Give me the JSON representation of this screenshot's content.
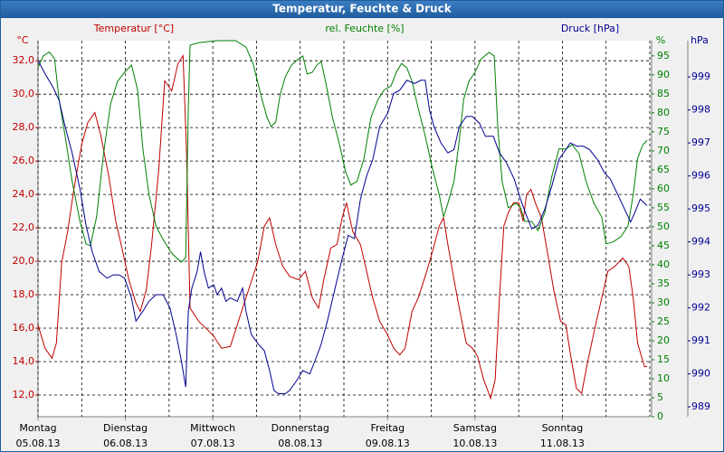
{
  "chart_data": {
    "type": "line",
    "title": "Temperatur, Feuchte & Druck",
    "xlim": [
      0,
      7
    ],
    "xticks": [
      {
        "value": 0,
        "label": "Montag",
        "date": "05.08.13"
      },
      {
        "value": 1,
        "label": "Dienstag",
        "date": "06.08.13"
      },
      {
        "value": 2,
        "label": "Mittwoch",
        "date": "07.08.13"
      },
      {
        "value": 3,
        "label": "Donnerstag",
        "date": "08.08.13"
      },
      {
        "value": 4,
        "label": "Freitag",
        "date": "09.08.13"
      },
      {
        "value": 5,
        "label": "Samstag",
        "date": "10.08.13"
      },
      {
        "value": 6,
        "label": "Sonntag",
        "date": "11.08.13"
      }
    ],
    "xminorticks": [
      0.5,
      1.5,
      2.5,
      3.5,
      4.5,
      5.5,
      6.5,
      7
    ],
    "ylabel": "°C",
    "ytitle": "Temperatur [°C]",
    "ylim": [
      10.7,
      33.2
    ],
    "yticks": [
      {
        "value": 12,
        "label": "12,0"
      },
      {
        "value": 14,
        "label": "14,0"
      },
      {
        "value": 16,
        "label": "16,0"
      },
      {
        "value": 18,
        "label": "18,0"
      },
      {
        "value": 20,
        "label": "20,0"
      },
      {
        "value": 22,
        "label": "22,0"
      },
      {
        "value": 24,
        "label": "24,0"
      },
      {
        "value": 26,
        "label": "26,0"
      },
      {
        "value": 28,
        "label": "28,0"
      },
      {
        "value": 30,
        "label": "30,0"
      },
      {
        "value": 32,
        "label": "32,0"
      }
    ],
    "y2label": "%",
    "y2title": "rel. Feuchte [%]",
    "y2lim": [
      0,
      99
    ],
    "y2ticks": [
      0,
      5,
      10,
      15,
      20,
      25,
      30,
      35,
      40,
      45,
      50,
      55,
      60,
      65,
      70,
      75,
      80,
      85,
      90,
      95
    ],
    "y3label": "hPa",
    "y3title": "Druck [hPa]",
    "y3lim": [
      988.7,
      1000.1
    ],
    "y3ticks": [
      989,
      990,
      991,
      992,
      993,
      994,
      995,
      996,
      997,
      998,
      999
    ],
    "grid": true,
    "series": [
      {
        "name": "Temperatur",
        "color": "#c00000",
        "axis": "y",
        "x": [
          0,
          0.08,
          0.16,
          0.21,
          0.27,
          0.34,
          0.41,
          0.5,
          0.57,
          0.65,
          0.72,
          0.81,
          0.89,
          0.96,
          1.04,
          1.12,
          1.17,
          1.24,
          1.3,
          1.38,
          1.45,
          1.53,
          1.6,
          1.66,
          1.7,
          1.74,
          1.84,
          2.0,
          2.1,
          2.2,
          2.31,
          2.41,
          2.51,
          2.59,
          2.65,
          2.72,
          2.8,
          2.88,
          2.98,
          3.06,
          3.14,
          3.21,
          3.27,
          3.35,
          3.42,
          3.48,
          3.53,
          3.6,
          3.69,
          3.76,
          3.83,
          3.91,
          4.0,
          4.07,
          4.14,
          4.2,
          4.28,
          4.35,
          4.43,
          4.51,
          4.59,
          4.64,
          4.69,
          4.76,
          4.82,
          4.9,
          4.97,
          5.03,
          5.1,
          5.18,
          5.23,
          5.28,
          5.33,
          5.38,
          5.44,
          5.5,
          5.55,
          5.59,
          5.64,
          5.69,
          5.76,
          5.83,
          5.9,
          5.98,
          6.04,
          6.09,
          6.16,
          6.22,
          6.29,
          6.38,
          6.45,
          6.52,
          6.6,
          6.69,
          6.76,
          6.81,
          6.86,
          6.94,
          6.97
        ],
        "values": [
          16.2,
          14.8,
          14.2,
          15.1,
          19.9,
          21.8,
          24.3,
          27.0,
          28.3,
          28.9,
          27.5,
          25.1,
          22.4,
          20.8,
          18.9,
          17.5,
          17.0,
          18.3,
          21.0,
          25.4,
          30.8,
          30.2,
          31.8,
          32.3,
          26.4,
          17.2,
          16.4,
          15.6,
          14.8,
          14.9,
          16.7,
          18.3,
          19.9,
          22.1,
          22.6,
          21.0,
          19.7,
          19.1,
          18.9,
          19.4,
          17.8,
          17.2,
          18.9,
          20.8,
          21.0,
          22.6,
          23.5,
          21.8,
          21.0,
          19.4,
          17.8,
          16.4,
          15.6,
          14.8,
          14.4,
          14.8,
          17.0,
          17.8,
          19.1,
          20.5,
          22.1,
          22.6,
          21.0,
          18.9,
          17.2,
          15.1,
          14.8,
          14.3,
          12.9,
          11.8,
          12.9,
          17.8,
          22.1,
          22.9,
          23.5,
          23.5,
          22.4,
          24.0,
          24.3,
          23.5,
          22.6,
          20.5,
          18.3,
          16.4,
          16.2,
          14.5,
          12.4,
          12.1,
          14.0,
          16.2,
          17.8,
          19.4,
          19.7,
          20.2,
          19.7,
          17.8,
          15.1,
          13.7,
          13.7
        ]
      },
      {
        "name": "rel. Feuchte",
        "color": "#008000",
        "axis": "y2",
        "x": [
          0,
          0.06,
          0.13,
          0.19,
          0.24,
          0.31,
          0.39,
          0.48,
          0.55,
          0.6,
          0.67,
          0.75,
          0.83,
          0.91,
          0.99,
          1.07,
          1.14,
          1.2,
          1.27,
          1.35,
          1.43,
          1.53,
          1.64,
          1.69,
          1.72,
          1.74,
          1.84,
          2.05,
          2.26,
          2.31,
          2.38,
          2.46,
          2.55,
          2.62,
          2.67,
          2.72,
          2.77,
          2.83,
          2.9,
          2.98,
          3.03,
          3.08,
          3.14,
          3.19,
          3.24,
          3.29,
          3.37,
          3.45,
          3.52,
          3.58,
          3.65,
          3.73,
          3.81,
          3.89,
          3.96,
          4.04,
          4.1,
          4.16,
          4.22,
          4.28,
          4.35,
          4.43,
          4.51,
          4.59,
          4.64,
          4.69,
          4.76,
          4.82,
          4.87,
          4.93,
          5.0,
          5.07,
          5.16,
          5.22,
          5.26,
          5.31,
          5.38,
          5.47,
          5.52,
          5.57,
          5.65,
          5.72,
          5.8,
          5.88,
          5.96,
          6.04,
          6.11,
          6.19,
          6.27,
          6.36,
          6.45,
          6.5,
          6.58,
          6.67,
          6.75,
          6.81,
          6.86,
          6.92,
          6.97
        ],
        "values": [
          91.9,
          95,
          96,
          94.2,
          83.6,
          74,
          62,
          51.4,
          45.5,
          45,
          52.6,
          69.3,
          82.4,
          88.3,
          90.7,
          92.6,
          86,
          70.5,
          58.5,
          50.2,
          46.7,
          43,
          40.7,
          41.9,
          81.2,
          97.8,
          98.5,
          99,
          99,
          98.3,
          97.3,
          93,
          84.7,
          78.8,
          76.4,
          77.6,
          84.7,
          89.5,
          92.6,
          94.2,
          95,
          90.2,
          90.7,
          92.6,
          93.5,
          88.3,
          78.8,
          71.6,
          64.5,
          61,
          62,
          68,
          78.8,
          83.5,
          86,
          87.1,
          90.7,
          93,
          91.9,
          88.3,
          81.2,
          74,
          65.7,
          58.5,
          52.6,
          56.2,
          62,
          72.8,
          83.5,
          88.3,
          90.7,
          94.2,
          95.9,
          95,
          76.4,
          62,
          55,
          56.2,
          55,
          51.4,
          51.4,
          49,
          53.8,
          63.3,
          70.5,
          70.5,
          71.6,
          69.3,
          62,
          56.2,
          52.6,
          45.5,
          46,
          47.4,
          50.2,
          58.5,
          68,
          71.6,
          72.8
        ]
      },
      {
        "name": "Druck",
        "color": "#000090",
        "axis": "y3",
        "x": [
          0,
          0.08,
          0.17,
          0.24,
          0.31,
          0.39,
          0.48,
          0.55,
          0.62,
          0.7,
          0.79,
          0.86,
          0.93,
          0.99,
          1.07,
          1.12,
          1.2,
          1.27,
          1.35,
          1.43,
          1.51,
          1.58,
          1.64,
          1.69,
          1.72,
          1.76,
          1.82,
          1.86,
          1.9,
          1.95,
          2.01,
          2.05,
          2.1,
          2.15,
          2.2,
          2.28,
          2.34,
          2.38,
          2.44,
          2.52,
          2.59,
          2.65,
          2.7,
          2.75,
          2.83,
          2.88,
          2.96,
          3.03,
          3.11,
          3.17,
          3.24,
          3.31,
          3.4,
          3.48,
          3.55,
          3.62,
          3.69,
          3.76,
          3.83,
          3.91,
          4.0,
          4.07,
          4.14,
          4.22,
          4.31,
          4.38,
          4.43,
          4.48,
          4.53,
          4.61,
          4.69,
          4.76,
          4.82,
          4.9,
          4.97,
          5.05,
          5.12,
          5.21,
          5.28,
          5.36,
          5.45,
          5.52,
          5.59,
          5.65,
          5.72,
          5.8,
          5.88,
          5.96,
          6.04,
          6.09,
          6.17,
          6.24,
          6.31,
          6.4,
          6.48,
          6.55,
          6.64,
          6.71,
          6.78,
          6.83,
          6.89,
          6.97
        ],
        "values": [
          999.5,
          999.1,
          998.7,
          998.3,
          997.5,
          996.7,
          995.6,
          994.5,
          993.7,
          993.1,
          992.9,
          993.0,
          993.0,
          992.9,
          992.3,
          991.6,
          991.9,
          992.2,
          992.4,
          992.4,
          992.0,
          991.2,
          990.4,
          989.6,
          991.9,
          992.6,
          993.1,
          993.7,
          993.1,
          992.6,
          992.7,
          992.4,
          992.6,
          992.2,
          992.3,
          992.2,
          992.6,
          991.9,
          991.2,
          990.9,
          990.7,
          990.1,
          989.5,
          989.4,
          989.4,
          989.5,
          989.8,
          990.1,
          990.0,
          990.4,
          990.9,
          991.6,
          992.6,
          993.5,
          994.2,
          994.1,
          995.3,
          996.0,
          996.5,
          997.5,
          997.9,
          998.5,
          998.6,
          998.9,
          998.8,
          998.9,
          998.9,
          998.0,
          997.5,
          997.0,
          996.7,
          996.8,
          997.5,
          997.8,
          997.8,
          997.6,
          997.2,
          997.2,
          996.7,
          996.4,
          995.9,
          995.3,
          994.8,
          994.4,
          994.5,
          995.0,
          995.7,
          996.5,
          996.8,
          997.0,
          996.9,
          996.9,
          996.8,
          996.5,
          996.1,
          995.9,
          995.4,
          995.0,
          994.6,
          994.9,
          995.3,
          995.1
        ]
      }
    ]
  }
}
